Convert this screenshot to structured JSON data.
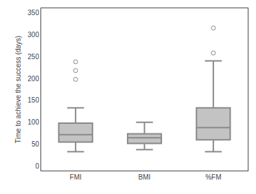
{
  "chart_data": {
    "type": "box",
    "categories": [
      "FMI",
      "BMI",
      "%FM"
    ],
    "whislo": [
      33,
      38,
      33
    ],
    "q1": [
      55,
      52,
      60
    ],
    "med": [
      72,
      65,
      88
    ],
    "q3": [
      98,
      74,
      133
    ],
    "whishi": [
      133,
      100,
      240
    ],
    "fliers": [
      [
        198,
        218,
        238
      ],
      [],
      [
        258,
        315
      ]
    ],
    "ylabel": "Time to achieve the success (days)",
    "ylim": [
      -10,
      360
    ],
    "yticks": [
      0,
      50,
      100,
      150,
      200,
      250,
      300,
      350
    ],
    "color": "#888888",
    "grid": false
  }
}
